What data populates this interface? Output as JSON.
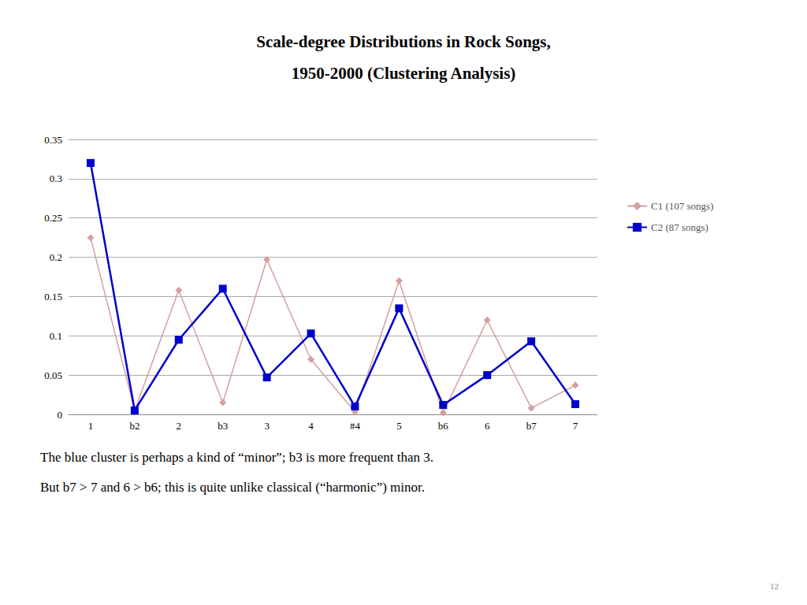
{
  "chart_data": {
    "type": "line",
    "title": "Scale-degree Distributions in Rock Songs,\n1950-2000 (Clustering Analysis)",
    "categories": [
      "1",
      "b2",
      "2",
      "b3",
      "3",
      "4",
      "#4",
      "5",
      "b6",
      "6",
      "b7",
      "7"
    ],
    "series": [
      {
        "name": "C1 (107 songs)",
        "color": "#d4a0a0",
        "marker": "diamond",
        "line_style": "solid",
        "values": [
          0.225,
          0.005,
          0.158,
          0.015,
          0.197,
          0.07,
          0.003,
          0.17,
          0.002,
          0.12,
          0.008,
          0.037
        ]
      },
      {
        "name": "C2 (87 songs)",
        "color": "#0000cc",
        "marker": "square",
        "line_style": "solid",
        "values": [
          0.32,
          0.005,
          0.095,
          0.16,
          0.047,
          0.103,
          0.01,
          0.135,
          0.012,
          0.05,
          0.093,
          0.013
        ]
      }
    ],
    "ylim": [
      0,
      0.35
    ],
    "yticks": [
      0,
      0.05,
      0.1,
      0.15,
      0.2,
      0.25,
      0.3,
      0.35
    ],
    "grid": true,
    "legend": "upper right",
    "annotations": [
      "The blue cluster is perhaps a kind of “minor”; b3 is more frequent than 3.",
      "But b7 > 7 and 6 > b6; this is quite unlike classical (“harmonic”) minor.",
      "12"
    ]
  }
}
